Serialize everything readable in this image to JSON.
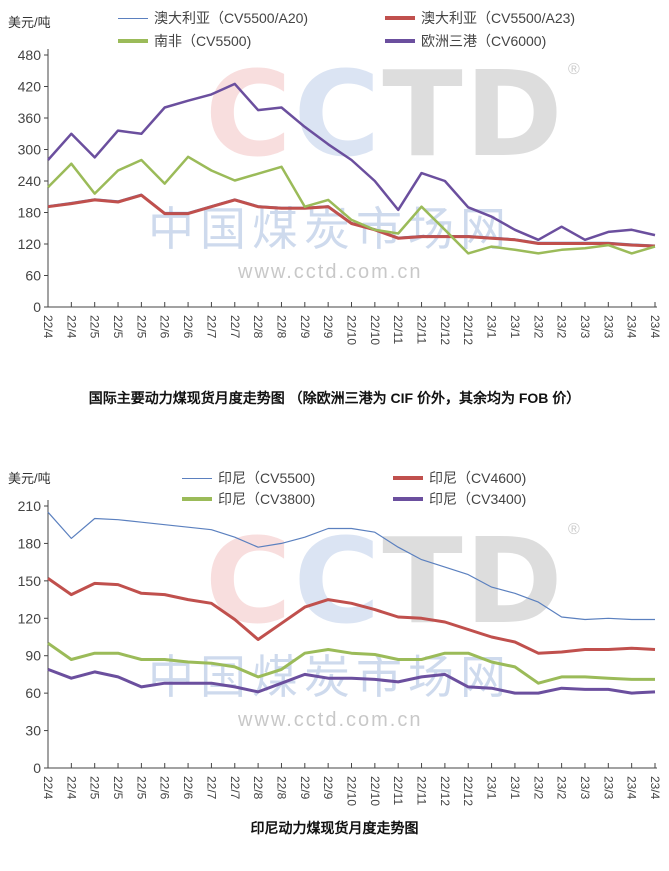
{
  "watermark": {
    "logo": "CCTD",
    "name": "中国煤炭市场网",
    "url": "www.cctd.com.cn",
    "registered": "®"
  },
  "chart_data": [
    {
      "type": "line",
      "title": "国际主要动力煤现货月度走势图 （除欧洲三港为 CIF 价外，其余均为 FOB 价）",
      "ylabel": "美元/吨",
      "ylim": [
        0,
        480
      ],
      "yticks": [
        0,
        60,
        120,
        180,
        240,
        300,
        360,
        420,
        480
      ],
      "categories": [
        "22/4",
        "22/4",
        "22/5",
        "22/5",
        "22/5",
        "22/6",
        "22/6",
        "22/7",
        "22/7",
        "22/8",
        "22/8",
        "22/9",
        "22/9",
        "22/10",
        "22/10",
        "22/11",
        "22/11",
        "22/12",
        "22/12",
        "23/1",
        "23/1",
        "23/2",
        "23/2",
        "23/3",
        "23/3",
        "23/4",
        "23/4"
      ],
      "legend_position": "top",
      "series": [
        {
          "name": "澳大利亚（CV5500/A20)",
          "color": "#5b80bf",
          "width": 1.2,
          "values": [
            193,
            199,
            206,
            202,
            215,
            180,
            180,
            193,
            206,
            193,
            190,
            190,
            193,
            161,
            149,
            133,
            136,
            136,
            136,
            133,
            130,
            123,
            123,
            123,
            123,
            120,
            118
          ]
        },
        {
          "name": "澳大利亚（CV5500/A23)",
          "color": "#c0504d",
          "width": 3,
          "values": [
            191,
            197,
            204,
            200,
            213,
            178,
            178,
            191,
            204,
            191,
            188,
            188,
            191,
            159,
            147,
            131,
            134,
            134,
            134,
            131,
            128,
            121,
            121,
            121,
            121,
            118,
            116
          ]
        },
        {
          "name": "南非（CV5500)",
          "color": "#9bbb59",
          "width": 2.5,
          "values": [
            228,
            273,
            216,
            260,
            280,
            235,
            286,
            260,
            241,
            254,
            267,
            191,
            204,
            166,
            147,
            140,
            191,
            147,
            102,
            115,
            109,
            102,
            109,
            112,
            118,
            102,
            115
          ]
        },
        {
          "name": "欧洲三港（CV6000)",
          "color": "#6b4f9e",
          "width": 2.5,
          "values": [
            280,
            330,
            285,
            336,
            330,
            380,
            393,
            405,
            425,
            375,
            380,
            343,
            310,
            280,
            240,
            185,
            255,
            240,
            190,
            172,
            147,
            128,
            153,
            128,
            143,
            147,
            137
          ]
        }
      ]
    },
    {
      "type": "line",
      "title": "印尼动力煤现货月度走势图",
      "ylabel": "美元/吨",
      "ylim": [
        0,
        210
      ],
      "yticks": [
        0,
        30,
        60,
        90,
        120,
        150,
        180,
        210
      ],
      "categories": [
        "22/4",
        "22/4",
        "22/5",
        "22/5",
        "22/5",
        "22/6",
        "22/6",
        "22/7",
        "22/7",
        "22/8",
        "22/8",
        "22/9",
        "22/9",
        "22/10",
        "22/10",
        "22/11",
        "22/11",
        "22/12",
        "22/12",
        "23/1",
        "23/1",
        "23/2",
        "23/2",
        "23/3",
        "23/3",
        "23/4",
        "23/4"
      ],
      "legend_position": "top",
      "series": [
        {
          "name": "印尼（CV5500)",
          "color": "#5b80bf",
          "width": 1.2,
          "values": [
            205,
            184,
            200,
            199,
            197,
            195,
            193,
            191,
            185,
            177,
            180,
            185,
            192,
            192,
            189,
            177,
            167,
            161,
            155,
            145,
            140,
            133,
            121,
            119,
            120,
            119,
            119
          ]
        },
        {
          "name": "印尼（CV4600)",
          "color": "#c0504d",
          "width": 3,
          "values": [
            152,
            139,
            148,
            147,
            140,
            139,
            135,
            132,
            119,
            103,
            116,
            129,
            135,
            132,
            127,
            121,
            120,
            117,
            111,
            105,
            101,
            92,
            93,
            95,
            95,
            96,
            95
          ]
        },
        {
          "name": "印尼（CV3800)",
          "color": "#9bbb59",
          "width": 3,
          "values": [
            100,
            87,
            92,
            92,
            87,
            87,
            85,
            84,
            81,
            73,
            79,
            92,
            95,
            92,
            91,
            87,
            87,
            92,
            92,
            85,
            81,
            68,
            73,
            73,
            72,
            71,
            71
          ]
        },
        {
          "name": "印尼（CV3400)",
          "color": "#6b4f9e",
          "width": 3,
          "values": [
            79,
            72,
            77,
            73,
            65,
            68,
            68,
            68,
            65,
            61,
            68,
            75,
            72,
            72,
            71,
            69,
            73,
            75,
            65,
            64,
            60,
            60,
            64,
            63,
            63,
            60,
            61
          ]
        }
      ]
    }
  ]
}
